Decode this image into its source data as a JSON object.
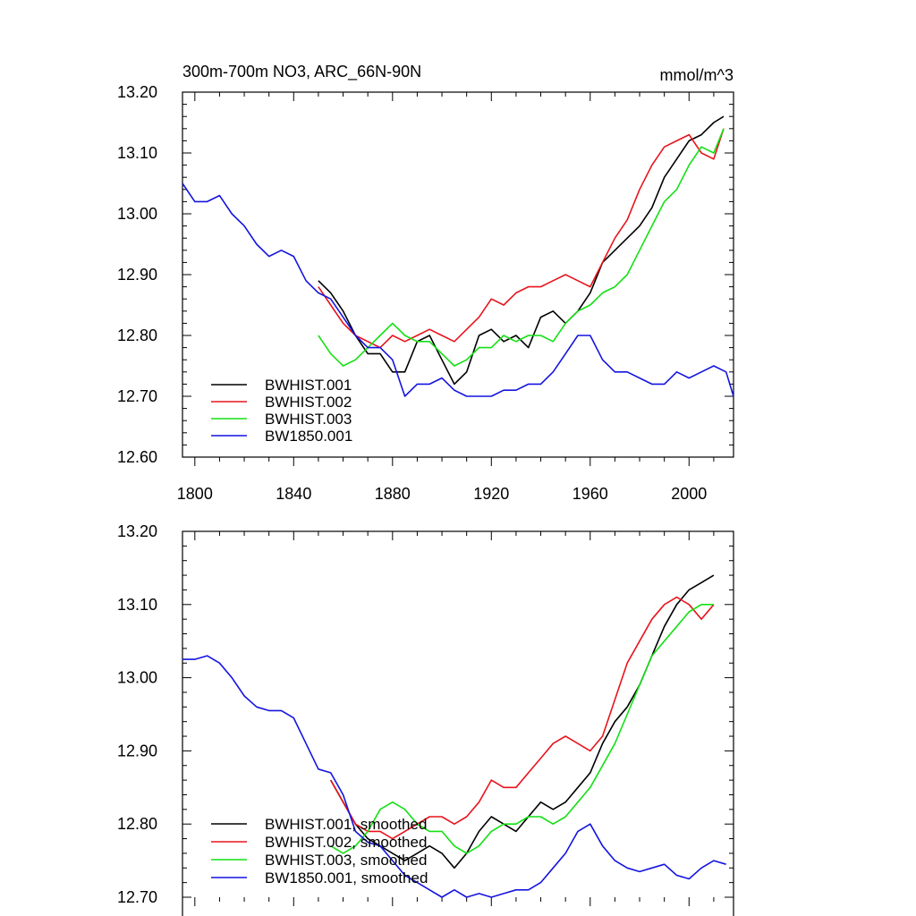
{
  "colors": {
    "black": "#000000",
    "red": "#e8141c",
    "green": "#14e014",
    "blue": "#1414e0"
  },
  "chart_data": [
    {
      "type": "line",
      "title": "300m-700m NO3, ARC_66N-90N",
      "units": "mmol/m^3",
      "xlim": [
        1795,
        2018
      ],
      "ylim": [
        12.6,
        13.2
      ],
      "xticks": [
        1800,
        1840,
        1880,
        1920,
        1960,
        2000
      ],
      "xtick_labels": [
        "1800",
        "1840",
        "1880",
        "1920",
        "1960",
        "2000"
      ],
      "yticks": [
        12.6,
        12.7,
        12.8,
        12.9,
        13.0,
        13.1,
        13.2
      ],
      "ytick_labels": [
        "12.60",
        "12.70",
        "12.80",
        "12.90",
        "13.00",
        "13.10",
        "13.20"
      ],
      "legend": "bottom-left",
      "series": [
        {
          "name": "BWHIST.001",
          "color": "#000000",
          "x": [
            1850,
            1855,
            1860,
            1865,
            1870,
            1875,
            1880,
            1885,
            1890,
            1895,
            1900,
            1905,
            1910,
            1915,
            1920,
            1925,
            1930,
            1935,
            1940,
            1945,
            1950,
            1955,
            1960,
            1965,
            1970,
            1975,
            1980,
            1985,
            1990,
            1995,
            2000,
            2005,
            2010,
            2014
          ],
          "y": [
            12.89,
            12.87,
            12.84,
            12.8,
            12.77,
            12.77,
            12.74,
            12.74,
            12.79,
            12.8,
            12.76,
            12.72,
            12.74,
            12.8,
            12.81,
            12.79,
            12.8,
            12.78,
            12.83,
            12.84,
            12.82,
            12.84,
            12.87,
            12.92,
            12.94,
            12.96,
            12.98,
            13.01,
            13.06,
            13.09,
            13.12,
            13.13,
            13.15,
            13.16
          ]
        },
        {
          "name": "BWHIST.002",
          "color": "#e8141c",
          "x": [
            1850,
            1855,
            1860,
            1865,
            1870,
            1875,
            1880,
            1885,
            1890,
            1895,
            1900,
            1905,
            1910,
            1915,
            1920,
            1925,
            1930,
            1935,
            1940,
            1945,
            1950,
            1955,
            1960,
            1965,
            1970,
            1975,
            1980,
            1985,
            1990,
            1995,
            2000,
            2005,
            2010,
            2014
          ],
          "y": [
            12.88,
            12.85,
            12.82,
            12.8,
            12.79,
            12.78,
            12.8,
            12.79,
            12.8,
            12.81,
            12.8,
            12.79,
            12.81,
            12.83,
            12.86,
            12.85,
            12.87,
            12.88,
            12.88,
            12.89,
            12.9,
            12.89,
            12.88,
            12.92,
            12.96,
            12.99,
            13.04,
            13.08,
            13.11,
            13.12,
            13.13,
            13.1,
            13.09,
            13.14
          ]
        },
        {
          "name": "BWHIST.003",
          "color": "#14e014",
          "x": [
            1850,
            1855,
            1860,
            1865,
            1870,
            1875,
            1880,
            1885,
            1890,
            1895,
            1900,
            1905,
            1910,
            1915,
            1920,
            1925,
            1930,
            1935,
            1940,
            1945,
            1950,
            1955,
            1960,
            1965,
            1970,
            1975,
            1980,
            1985,
            1990,
            1995,
            2000,
            2005,
            2010,
            2014
          ],
          "y": [
            12.8,
            12.77,
            12.75,
            12.76,
            12.78,
            12.8,
            12.82,
            12.8,
            12.79,
            12.79,
            12.77,
            12.75,
            12.76,
            12.78,
            12.78,
            12.8,
            12.79,
            12.8,
            12.8,
            12.79,
            12.82,
            12.84,
            12.85,
            12.87,
            12.88,
            12.9,
            12.94,
            12.98,
            13.02,
            13.04,
            13.08,
            13.11,
            13.1,
            13.14
          ]
        },
        {
          "name": "BW1850.001",
          "color": "#1414e0",
          "x": [
            1795,
            1800,
            1805,
            1810,
            1815,
            1820,
            1825,
            1830,
            1835,
            1840,
            1845,
            1850,
            1855,
            1860,
            1865,
            1870,
            1875,
            1880,
            1885,
            1890,
            1895,
            1900,
            1905,
            1910,
            1915,
            1920,
            1925,
            1930,
            1935,
            1940,
            1945,
            1950,
            1955,
            1960,
            1965,
            1970,
            1975,
            1980,
            1985,
            1990,
            1995,
            2000,
            2005,
            2010,
            2015,
            2018
          ],
          "y": [
            13.05,
            13.02,
            13.02,
            13.03,
            13.0,
            12.98,
            12.95,
            12.93,
            12.94,
            12.93,
            12.89,
            12.87,
            12.86,
            12.83,
            12.8,
            12.78,
            12.78,
            12.76,
            12.7,
            12.72,
            12.72,
            12.73,
            12.71,
            12.7,
            12.7,
            12.7,
            12.71,
            12.71,
            12.72,
            12.72,
            12.74,
            12.77,
            12.8,
            12.8,
            12.76,
            12.74,
            12.74,
            12.73,
            12.72,
            12.72,
            12.74,
            12.73,
            12.74,
            12.75,
            12.74,
            12.7
          ]
        }
      ]
    },
    {
      "type": "line",
      "xlim": [
        1795,
        2018
      ],
      "ylim": [
        12.7,
        13.2
      ],
      "yticks": [
        12.7,
        12.8,
        12.9,
        13.0,
        13.1,
        13.2
      ],
      "ytick_labels": [
        "12.70",
        "12.80",
        "12.90",
        "13.00",
        "13.10",
        "13.20"
      ],
      "xticks": [
        1800,
        1840,
        1880,
        1920,
        1960,
        2000
      ],
      "legend": "bottom-left",
      "series": [
        {
          "name": "BWHIST.001, smoothed",
          "color": "#000000",
          "x": [
            1855,
            1860,
            1865,
            1870,
            1875,
            1880,
            1885,
            1890,
            1895,
            1900,
            1905,
            1910,
            1915,
            1920,
            1925,
            1930,
            1935,
            1940,
            1945,
            1950,
            1955,
            1960,
            1965,
            1970,
            1975,
            1980,
            1985,
            1990,
            1995,
            2000,
            2005,
            2010
          ],
          "y": [
            12.86,
            12.83,
            12.8,
            12.78,
            12.77,
            12.76,
            12.75,
            12.76,
            12.77,
            12.76,
            12.74,
            12.76,
            12.79,
            12.81,
            12.8,
            12.79,
            12.81,
            12.83,
            12.82,
            12.83,
            12.85,
            12.87,
            12.91,
            12.94,
            12.96,
            12.99,
            13.03,
            13.07,
            13.1,
            13.12,
            13.13,
            13.14
          ]
        },
        {
          "name": "BWHIST.002, smoothed",
          "color": "#e8141c",
          "x": [
            1855,
            1860,
            1865,
            1870,
            1875,
            1880,
            1885,
            1890,
            1895,
            1900,
            1905,
            1910,
            1915,
            1920,
            1925,
            1930,
            1935,
            1940,
            1945,
            1950,
            1955,
            1960,
            1965,
            1970,
            1975,
            1980,
            1985,
            1990,
            1995,
            2000,
            2005,
            2010
          ],
          "y": [
            12.86,
            12.83,
            12.8,
            12.79,
            12.79,
            12.78,
            12.79,
            12.8,
            12.81,
            12.81,
            12.8,
            12.81,
            12.83,
            12.86,
            12.85,
            12.85,
            12.87,
            12.89,
            12.91,
            12.92,
            12.91,
            12.9,
            12.92,
            12.97,
            13.02,
            13.05,
            13.08,
            13.1,
            13.11,
            13.1,
            13.08,
            13.1
          ]
        },
        {
          "name": "BWHIST.003, smoothed",
          "color": "#14e014",
          "x": [
            1855,
            1860,
            1865,
            1870,
            1875,
            1880,
            1885,
            1890,
            1895,
            1900,
            1905,
            1910,
            1915,
            1920,
            1925,
            1930,
            1935,
            1940,
            1945,
            1950,
            1955,
            1960,
            1965,
            1970,
            1975,
            1980,
            1985,
            1990,
            1995,
            2000,
            2005,
            2010
          ],
          "y": [
            12.77,
            12.76,
            12.77,
            12.79,
            12.82,
            12.83,
            12.82,
            12.8,
            12.79,
            12.79,
            12.77,
            12.76,
            12.77,
            12.79,
            12.8,
            12.8,
            12.81,
            12.81,
            12.8,
            12.81,
            12.83,
            12.85,
            12.88,
            12.91,
            12.95,
            12.99,
            13.03,
            13.05,
            13.07,
            13.09,
            13.1,
            13.1
          ]
        },
        {
          "name": "BW1850.001, smoothed",
          "color": "#1414e0",
          "x": [
            1795,
            1800,
            1805,
            1810,
            1815,
            1820,
            1825,
            1830,
            1835,
            1840,
            1845,
            1850,
            1855,
            1860,
            1865,
            1870,
            1875,
            1880,
            1885,
            1890,
            1895,
            1900,
            1905,
            1910,
            1915,
            1920,
            1925,
            1930,
            1935,
            1940,
            1945,
            1950,
            1955,
            1960,
            1965,
            1970,
            1975,
            1980,
            1985,
            1990,
            1995,
            2000,
            2005,
            2010,
            2015
          ],
          "y": [
            13.025,
            13.025,
            13.03,
            13.02,
            13.0,
            12.975,
            12.96,
            12.955,
            12.955,
            12.945,
            12.91,
            12.875,
            12.87,
            12.84,
            12.79,
            12.775,
            12.77,
            12.75,
            12.73,
            12.72,
            12.71,
            12.7,
            12.71,
            12.7,
            12.705,
            12.7,
            12.705,
            12.71,
            12.71,
            12.72,
            12.74,
            12.76,
            12.79,
            12.8,
            12.77,
            12.75,
            12.74,
            12.735,
            12.74,
            12.745,
            12.73,
            12.725,
            12.74,
            12.75,
            12.745
          ]
        }
      ]
    }
  ]
}
